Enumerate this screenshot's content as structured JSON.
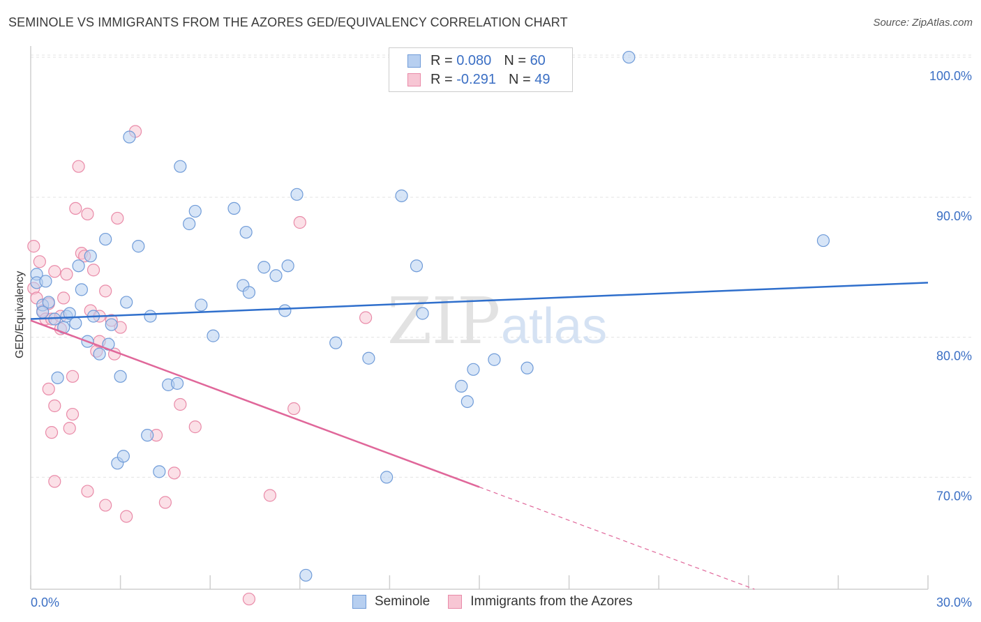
{
  "title": "SEMINOLE VS IMMIGRANTS FROM THE AZORES GED/EQUIVALENCY CORRELATION CHART",
  "source": "Source: ZipAtlas.com",
  "watermark": {
    "zip": "ZIP",
    "atlas": "atlas"
  },
  "colors": {
    "seminole_fill": "#b7cff0",
    "seminole_stroke": "#6f9bd8",
    "seminole_line": "#2f6fcc",
    "azores_fill": "#f7c6d4",
    "azores_stroke": "#e98aa8",
    "azores_line": "#e0679a",
    "tick_label": "#3b6fc4"
  },
  "legend": {
    "seminole": {
      "r_label": "R =",
      "r_value": "0.080",
      "n_label": "N =",
      "n_value": "60"
    },
    "azores": {
      "r_label": "R =",
      "r_value": "-0.291",
      "n_label": "N =",
      "n_value": "49"
    }
  },
  "bottom_legend": {
    "seminole": "Seminole",
    "azores": "Immigrants from the Azores"
  },
  "chart_data": {
    "type": "scatter",
    "ylabel": "GED/Equivalency",
    "xlim": [
      0,
      30
    ],
    "ylim": [
      62,
      101
    ],
    "x_tick_labels": {
      "min": "0.0%",
      "max": "30.0%"
    },
    "y_ticks": [
      {
        "value": 70,
        "label": "70.0%"
      },
      {
        "value": 80,
        "label": "80.0%"
      },
      {
        "value": 90,
        "label": "90.0%"
      },
      {
        "value": 100,
        "label": "100.0%"
      }
    ],
    "grid": true,
    "series": [
      {
        "name": "Seminole",
        "trend": {
          "x0": 0,
          "y0": 81.3,
          "x1": 30,
          "y1": 83.9
        },
        "points": [
          [
            0.2,
            84.5
          ],
          [
            0.2,
            83.9
          ],
          [
            0.4,
            82.3
          ],
          [
            0.5,
            84.0
          ],
          [
            0.6,
            82.5
          ],
          [
            0.8,
            81.3
          ],
          [
            0.9,
            77.1
          ],
          [
            1.1,
            80.7
          ],
          [
            1.2,
            81.5
          ],
          [
            1.3,
            81.7
          ],
          [
            1.5,
            81.0
          ],
          [
            1.6,
            85.1
          ],
          [
            1.7,
            83.4
          ],
          [
            1.9,
            79.7
          ],
          [
            2.0,
            85.8
          ],
          [
            2.1,
            81.5
          ],
          [
            2.3,
            78.8
          ],
          [
            2.5,
            87.0
          ],
          [
            2.6,
            79.5
          ],
          [
            2.7,
            80.9
          ],
          [
            2.9,
            71.0
          ],
          [
            3.0,
            77.2
          ],
          [
            3.1,
            71.5
          ],
          [
            3.2,
            82.5
          ],
          [
            3.3,
            94.3
          ],
          [
            3.6,
            86.5
          ],
          [
            3.9,
            73.0
          ],
          [
            4.0,
            81.5
          ],
          [
            4.3,
            70.4
          ],
          [
            4.6,
            76.6
          ],
          [
            4.9,
            76.7
          ],
          [
            5.0,
            92.2
          ],
          [
            5.3,
            88.1
          ],
          [
            5.5,
            89.0
          ],
          [
            5.7,
            82.3
          ],
          [
            6.1,
            80.1
          ],
          [
            6.8,
            89.2
          ],
          [
            7.1,
            83.7
          ],
          [
            7.2,
            87.5
          ],
          [
            7.3,
            83.2
          ],
          [
            7.8,
            85.0
          ],
          [
            8.2,
            84.4
          ],
          [
            8.5,
            81.9
          ],
          [
            8.6,
            85.1
          ],
          [
            8.9,
            90.2
          ],
          [
            10.2,
            79.6
          ],
          [
            11.3,
            78.5
          ],
          [
            11.9,
            70.0
          ],
          [
            12.4,
            90.1
          ],
          [
            12.9,
            85.1
          ],
          [
            13.1,
            81.7
          ],
          [
            14.4,
            76.5
          ],
          [
            14.6,
            75.4
          ],
          [
            14.8,
            77.7
          ],
          [
            15.5,
            78.4
          ],
          [
            16.6,
            77.8
          ],
          [
            20.0,
            100.0
          ],
          [
            26.5,
            86.9
          ],
          [
            9.2,
            63.0
          ],
          [
            0.4,
            81.8
          ]
        ]
      },
      {
        "name": "Immigrants from the Azores",
        "trend": {
          "x0": 0,
          "y0": 81.2,
          "x1": 15.0,
          "y1": 69.3,
          "dash_x1": 30,
          "dash_y1": 57.4
        },
        "points": [
          [
            0.1,
            86.5
          ],
          [
            0.1,
            83.5
          ],
          [
            0.2,
            82.8
          ],
          [
            0.3,
            85.4
          ],
          [
            0.4,
            81.9
          ],
          [
            0.5,
            81.3
          ],
          [
            0.6,
            82.4
          ],
          [
            0.6,
            76.3
          ],
          [
            0.7,
            81.3
          ],
          [
            0.7,
            73.2
          ],
          [
            0.8,
            75.1
          ],
          [
            0.8,
            84.7
          ],
          [
            0.8,
            69.7
          ],
          [
            1.0,
            80.6
          ],
          [
            1.1,
            82.8
          ],
          [
            1.2,
            84.5
          ],
          [
            1.3,
            73.5
          ],
          [
            1.4,
            77.2
          ],
          [
            1.4,
            74.5
          ],
          [
            1.5,
            89.2
          ],
          [
            1.6,
            92.2
          ],
          [
            1.7,
            86.0
          ],
          [
            1.8,
            85.8
          ],
          [
            1.9,
            88.8
          ],
          [
            1.9,
            69.0
          ],
          [
            2.0,
            81.9
          ],
          [
            2.1,
            84.8
          ],
          [
            2.2,
            79.0
          ],
          [
            2.3,
            79.7
          ],
          [
            2.5,
            83.3
          ],
          [
            2.5,
            68.0
          ],
          [
            2.7,
            81.2
          ],
          [
            2.8,
            78.8
          ],
          [
            2.9,
            88.5
          ],
          [
            3.0,
            80.7
          ],
          [
            3.2,
            67.2
          ],
          [
            3.5,
            94.7
          ],
          [
            4.2,
            73.0
          ],
          [
            4.5,
            68.2
          ],
          [
            4.8,
            70.3
          ],
          [
            5.0,
            75.2
          ],
          [
            5.5,
            73.6
          ],
          [
            7.3,
            61.3
          ],
          [
            8.0,
            68.7
          ],
          [
            8.8,
            74.9
          ],
          [
            9.0,
            88.2
          ],
          [
            11.2,
            81.4
          ],
          [
            2.3,
            81.5
          ],
          [
            1.0,
            81.5
          ]
        ]
      }
    ]
  }
}
